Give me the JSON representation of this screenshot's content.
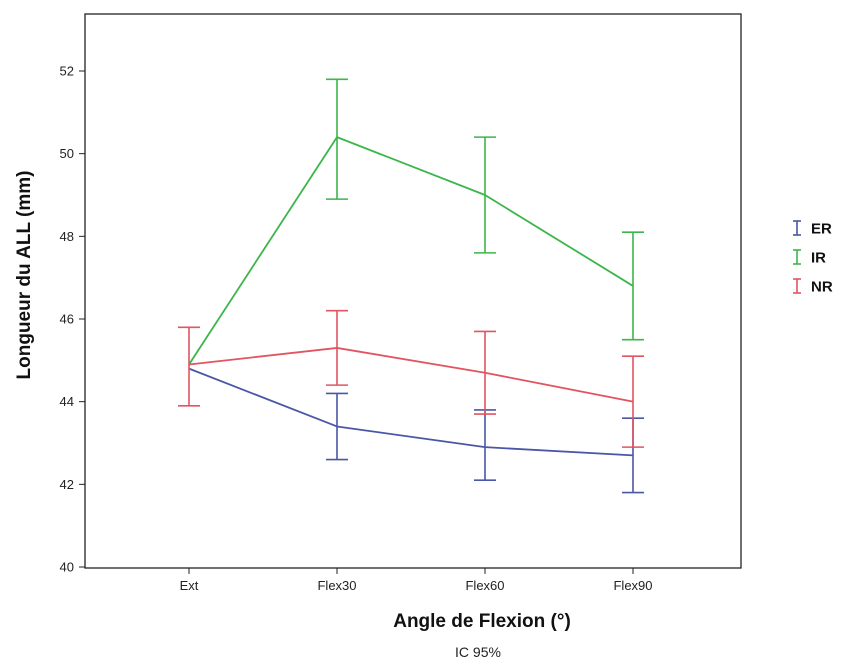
{
  "chart_data": {
    "type": "line",
    "xlabel": "Angle de Flexion (°)",
    "ylabel": "Longueur du ALL (mm)",
    "footnote": "IC 95%",
    "categories": [
      "Ext",
      "Flex30",
      "Flex60",
      "Flex90"
    ],
    "ylim": [
      40,
      53
    ],
    "yticks": [
      40,
      42,
      44,
      46,
      48,
      50,
      52
    ],
    "ytick_labels": [
      "40",
      "42",
      "44",
      "46",
      "48",
      "50",
      "52"
    ],
    "grid": false,
    "legend_position": "right",
    "series": [
      {
        "name": "ER",
        "color": "#4a57a6",
        "values": [
          44.8,
          43.4,
          42.9,
          42.7
        ],
        "ci_low": [
          null,
          42.6,
          42.1,
          41.8
        ],
        "ci_high": [
          null,
          44.2,
          43.8,
          43.6
        ]
      },
      {
        "name": "IR",
        "color": "#3cb54a",
        "values": [
          44.9,
          50.4,
          49.0,
          46.8
        ],
        "ci_low": [
          null,
          48.9,
          47.6,
          45.5
        ],
        "ci_high": [
          null,
          51.8,
          50.4,
          48.1
        ]
      },
      {
        "name": "NR",
        "color": "#e05560",
        "values": [
          44.9,
          45.3,
          44.7,
          44.0
        ],
        "ci_low": [
          43.9,
          44.4,
          43.7,
          42.9
        ],
        "ci_high": [
          45.8,
          46.2,
          45.7,
          45.1
        ]
      }
    ]
  }
}
